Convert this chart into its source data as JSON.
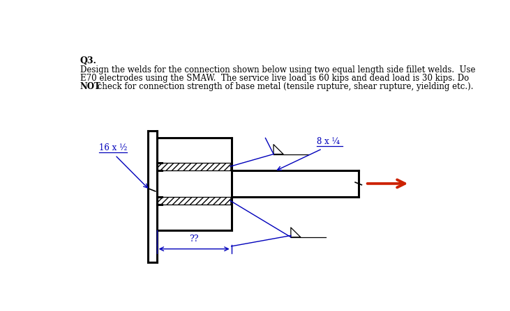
{
  "bg_color": "#ffffff",
  "text_color": "#000000",
  "blue_color": "#0000bb",
  "red_color": "#cc2200",
  "title_bold": "Q3.",
  "q_line1": "Design the welds for the connection shown below using two equal length side fillet welds.  Use",
  "q_line2": "E70 electrodes using the SMAW.  The service live load is 60 kips and dead load is 30 kips. Do",
  "q_line3_bold": "NOT",
  "q_line3_rest": " check for connection strength of base metal (tensile rupture, shear rupture, yielding etc.).",
  "label_left": "16 x ½",
  "label_right": "8 x ¼",
  "label_dim": "??",
  "lw_thick": 2.2,
  "lw_med": 1.2,
  "lw_thin": 0.9
}
